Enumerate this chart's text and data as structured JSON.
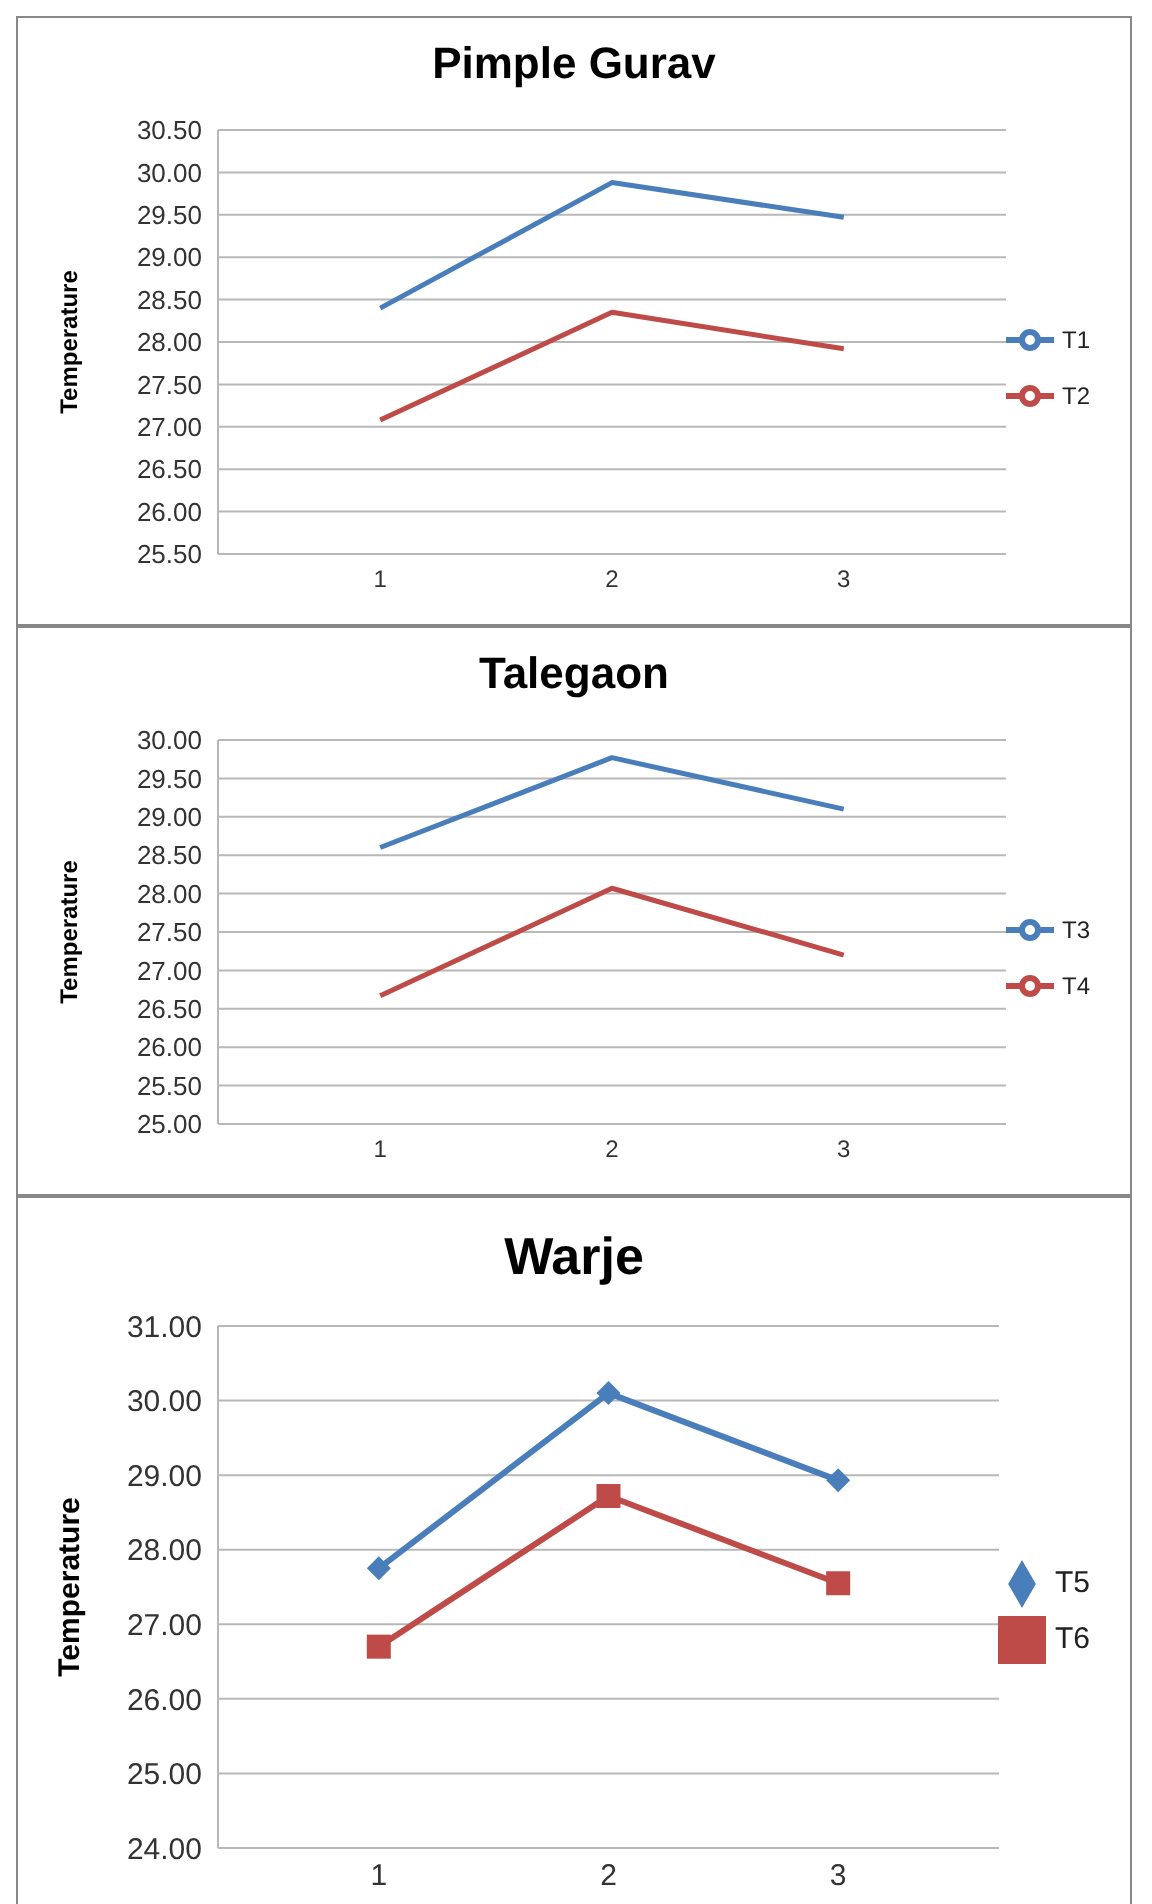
{
  "chart_data": [
    {
      "type": "line",
      "title": "Pimple Gurav",
      "ylabel": "Temperature",
      "categories": [
        "1",
        "2",
        "3"
      ],
      "series": [
        {
          "name": "T1",
          "color": "#4a7ebb",
          "values": [
            28.4,
            29.88,
            29.47
          ]
        },
        {
          "name": "T2",
          "color": "#be4b48",
          "values": [
            27.08,
            28.35,
            27.92
          ]
        }
      ],
      "ylim": [
        25.5,
        30.5
      ],
      "yticks": [
        {
          "value": 25.5,
          "label": "25.50"
        },
        {
          "value": 26,
          "label": "26.00"
        },
        {
          "value": 26.5,
          "label": "26.50"
        },
        {
          "value": 27,
          "label": "27.00"
        },
        {
          "value": 27.5,
          "label": "27.50"
        },
        {
          "value": 28,
          "label": "28.00"
        },
        {
          "value": 28.5,
          "label": "28.50"
        },
        {
          "value": 29,
          "label": "29.00"
        },
        {
          "value": 29.5,
          "label": "29.50"
        },
        {
          "value": 30,
          "label": "30.00"
        },
        {
          "value": 30.5,
          "label": "30.50"
        }
      ],
      "grid": "y",
      "legend": "right",
      "marker": "none"
    },
    {
      "type": "line",
      "title": "Talegaon",
      "ylabel": "Temperature",
      "categories": [
        "1",
        "2",
        "3"
      ],
      "series": [
        {
          "name": "T3",
          "color": "#4a7ebb",
          "values": [
            28.6,
            29.77,
            29.1
          ]
        },
        {
          "name": "T4",
          "color": "#be4b48",
          "values": [
            26.67,
            28.07,
            27.2
          ]
        }
      ],
      "ylim": [
        25,
        30
      ],
      "yticks": [
        {
          "value": 25,
          "label": "25.00"
        },
        {
          "value": 25.5,
          "label": "25.50"
        },
        {
          "value": 26,
          "label": "26.00"
        },
        {
          "value": 26.5,
          "label": "26.50"
        },
        {
          "value": 27,
          "label": "27.00"
        },
        {
          "value": 27.5,
          "label": "27.50"
        },
        {
          "value": 28,
          "label": "28.00"
        },
        {
          "value": 28.5,
          "label": "28.50"
        },
        {
          "value": 29,
          "label": "29.00"
        },
        {
          "value": 29.5,
          "label": "29.50"
        },
        {
          "value": 30,
          "label": "30.00"
        }
      ],
      "grid": "y",
      "legend": "right",
      "marker": "none"
    },
    {
      "type": "line",
      "title": "Warje",
      "ylabel": "Temperature",
      "categories": [
        "1",
        "2",
        "3"
      ],
      "series": [
        {
          "name": "T5",
          "color": "#4a7ebb",
          "values": [
            27.75,
            30.1,
            28.93
          ],
          "marker": "diamond"
        },
        {
          "name": "T6",
          "color": "#be4b48",
          "values": [
            26.7,
            28.72,
            27.55
          ],
          "marker": "square"
        }
      ],
      "ylim": [
        24,
        31
      ],
      "yticks": [
        {
          "value": 24,
          "label": "24.00"
        },
        {
          "value": 25,
          "label": "25.00"
        },
        {
          "value": 26,
          "label": "26.00"
        },
        {
          "value": 27,
          "label": "27.00"
        },
        {
          "value": 28,
          "label": "28.00"
        },
        {
          "value": 29,
          "label": "29.00"
        },
        {
          "value": 30,
          "label": "30.00"
        },
        {
          "value": 31,
          "label": "31.00"
        }
      ],
      "grid": "y",
      "legend": "right"
    }
  ]
}
